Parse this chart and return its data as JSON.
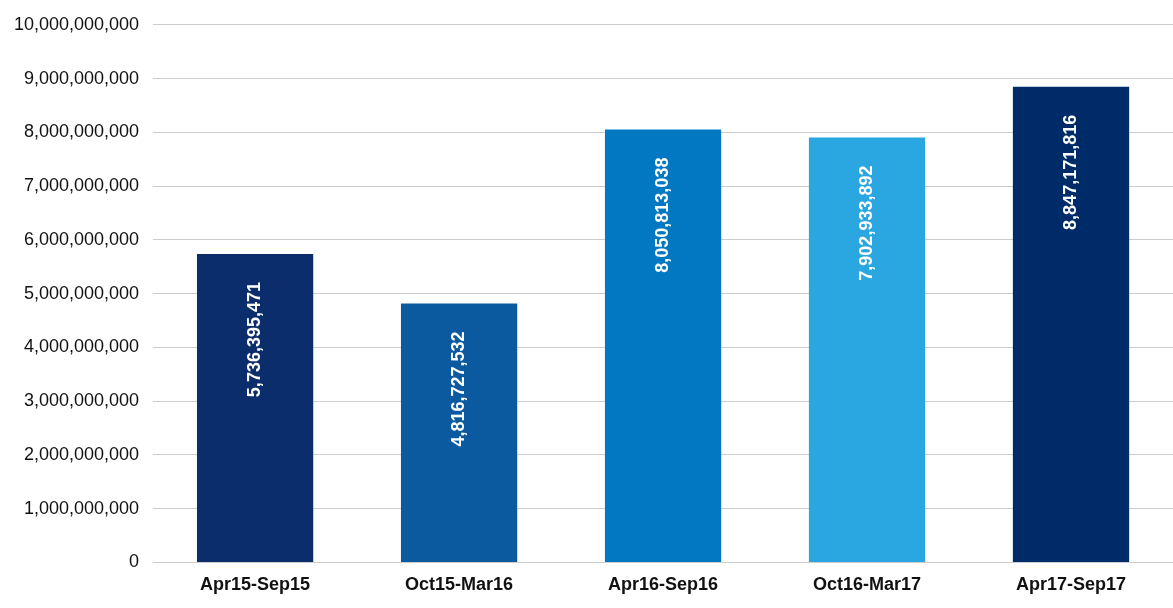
{
  "chart_data": {
    "type": "bar",
    "categories": [
      "Apr15-Sep15",
      "Oct15-Mar16",
      "Apr16-Sep16",
      "Oct16-Mar17",
      "Apr17-Sep17"
    ],
    "values": [
      5736395471,
      4816727532,
      8050813038,
      7902933892,
      8847171816
    ],
    "value_labels": [
      "5,736,395,471",
      "4,816,727,532",
      "8,050,813,038",
      "7,902,933,892",
      "8,847,171,816"
    ],
    "colors": [
      "#0c2d6b",
      "#0b5a9f",
      "#0278c2",
      "#2aa7e0",
      "#002b69"
    ],
    "ylim": [
      0,
      10000000000
    ],
    "yticks": [
      0,
      {
        "value": 1000000000,
        "label": "1,000,000,000"
      },
      {
        "value": 2000000000,
        "label": "2,000,000,000"
      },
      {
        "value": 3000000000,
        "label": "3,000,000,000"
      },
      {
        "value": 4000000000,
        "label": "4,000,000,000"
      },
      {
        "value": 5000000000,
        "label": "5,000,000,000"
      },
      {
        "value": 6000000000,
        "label": "6,000,000,000"
      },
      {
        "value": 7000000000,
        "label": "7,000,000,000"
      },
      {
        "value": 8000000000,
        "label": "8,000,000,000"
      },
      {
        "value": 9000000000,
        "label": "9,000,000,000"
      },
      {
        "value": 10000000000,
        "label": "10,000,000,000"
      }
    ],
    "grid": "y",
    "legend": false
  }
}
